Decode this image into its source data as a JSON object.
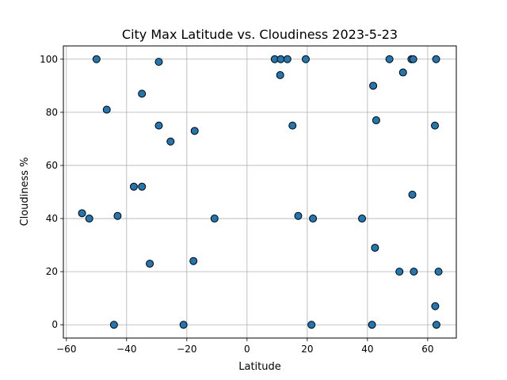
{
  "chart_data": {
    "type": "scatter",
    "title": "City Max Latitude vs. Cloudiness 2023-5-23",
    "xlabel": "Latitude",
    "ylabel": "Cloudiness %",
    "xlim": [
      -61,
      69.5
    ],
    "ylim": [
      -5,
      105
    ],
    "xticks": [
      -60,
      -40,
      -20,
      0,
      20,
      40,
      60
    ],
    "yticks": [
      0,
      20,
      40,
      60,
      80,
      100
    ],
    "xtick_labels": [
      "−60",
      "−40",
      "−20",
      "0",
      "20",
      "40",
      "60"
    ],
    "ytick_labels": [
      "0",
      "20",
      "40",
      "60",
      "80",
      "100"
    ],
    "grid": true,
    "marker_color": "#1f77b4",
    "marker_edge_color": "#000000",
    "points": [
      {
        "x": -54.8,
        "y": 42
      },
      {
        "x": -52.4,
        "y": 40
      },
      {
        "x": -50.0,
        "y": 100
      },
      {
        "x": -46.6,
        "y": 81
      },
      {
        "x": -44.2,
        "y": 0
      },
      {
        "x": -43.0,
        "y": 41
      },
      {
        "x": -37.6,
        "y": 52
      },
      {
        "x": -34.9,
        "y": 87
      },
      {
        "x": -34.9,
        "y": 52
      },
      {
        "x": -32.3,
        "y": 23
      },
      {
        "x": -29.3,
        "y": 99
      },
      {
        "x": -29.3,
        "y": 75
      },
      {
        "x": -25.4,
        "y": 69
      },
      {
        "x": -21.1,
        "y": 0
      },
      {
        "x": -17.8,
        "y": 24
      },
      {
        "x": -17.4,
        "y": 73
      },
      {
        "x": -10.8,
        "y": 40
      },
      {
        "x": 9.2,
        "y": 100
      },
      {
        "x": 11.0,
        "y": 94
      },
      {
        "x": 11.2,
        "y": 100
      },
      {
        "x": 13.4,
        "y": 100
      },
      {
        "x": 15.1,
        "y": 75
      },
      {
        "x": 17.0,
        "y": 41
      },
      {
        "x": 19.5,
        "y": 100
      },
      {
        "x": 21.4,
        "y": 0
      },
      {
        "x": 21.9,
        "y": 40
      },
      {
        "x": 38.2,
        "y": 40
      },
      {
        "x": 41.5,
        "y": 0
      },
      {
        "x": 41.9,
        "y": 90
      },
      {
        "x": 42.5,
        "y": 29
      },
      {
        "x": 42.9,
        "y": 77
      },
      {
        "x": 47.3,
        "y": 100
      },
      {
        "x": 50.6,
        "y": 20
      },
      {
        "x": 51.8,
        "y": 95
      },
      {
        "x": 54.6,
        "y": 100
      },
      {
        "x": 54.9,
        "y": 49
      },
      {
        "x": 55.2,
        "y": 100
      },
      {
        "x": 55.4,
        "y": 20
      },
      {
        "x": 62.4,
        "y": 75
      },
      {
        "x": 62.5,
        "y": 7
      },
      {
        "x": 62.8,
        "y": 100
      },
      {
        "x": 62.9,
        "y": 0
      },
      {
        "x": 63.6,
        "y": 20
      }
    ]
  }
}
